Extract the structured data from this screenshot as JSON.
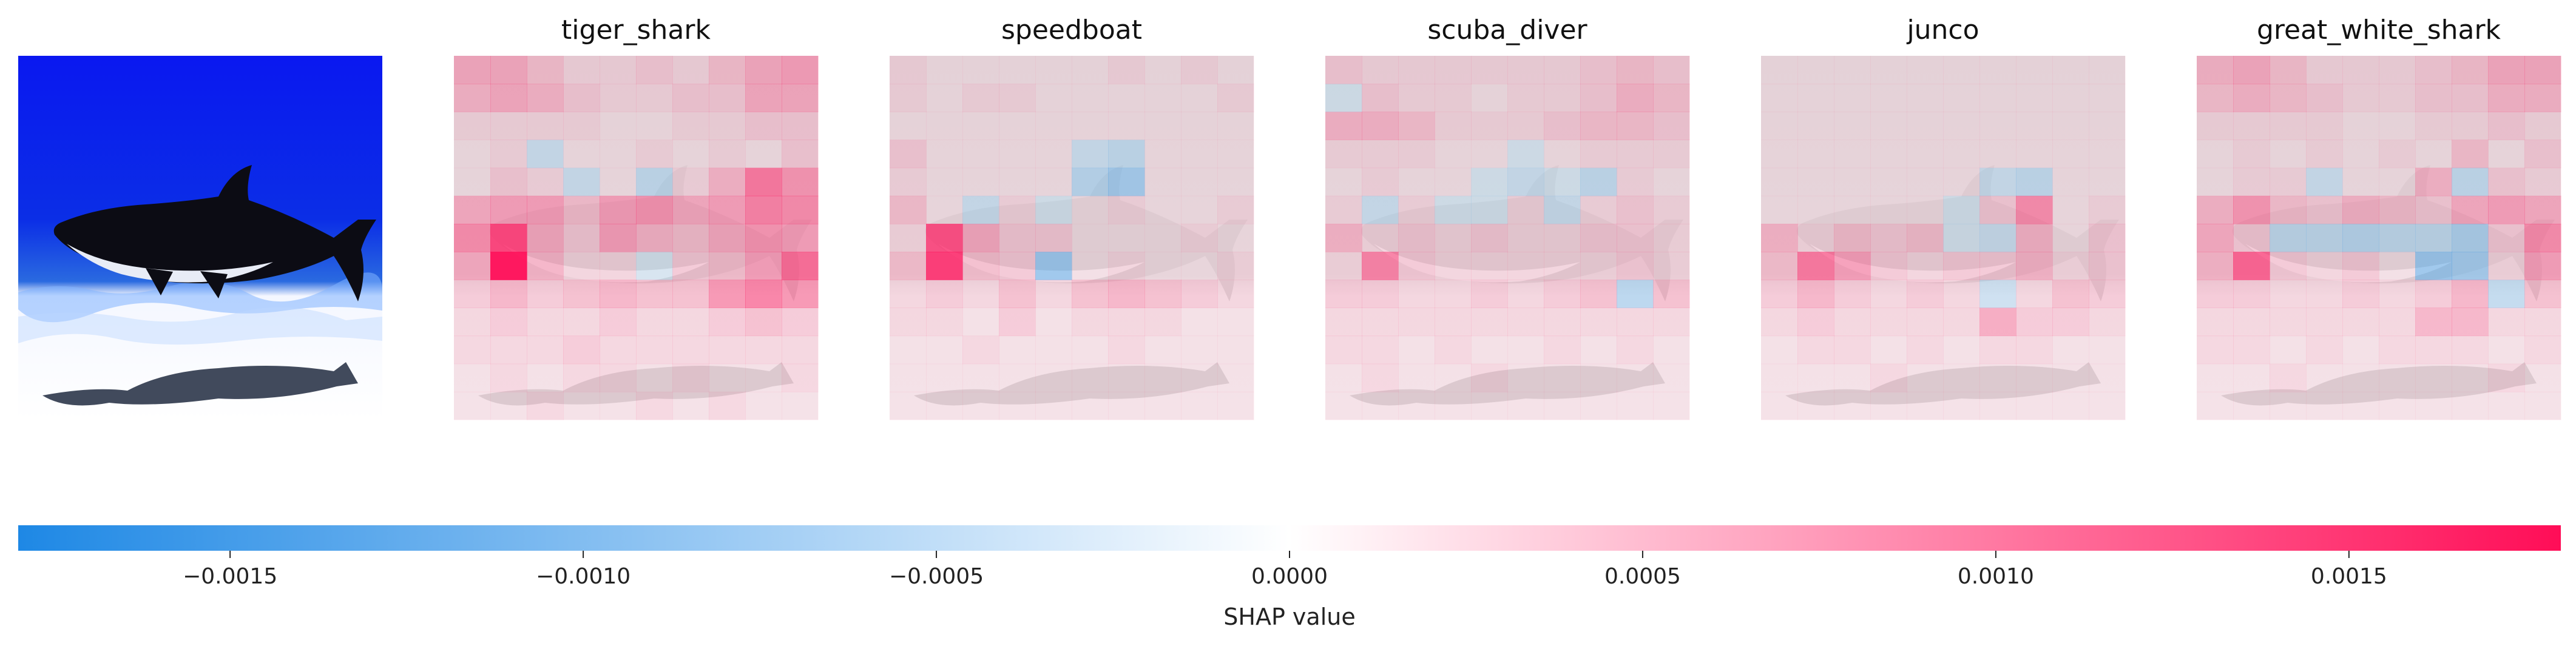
{
  "chart_data": {
    "type": "heatmap",
    "panels": [
      {
        "title": "",
        "kind": "input-image"
      },
      {
        "title": "tiger_shark",
        "grid": [
          [
            0.25,
            0.25,
            0.15,
            0.05,
            0.05,
            0.1,
            0.05,
            0.15,
            0.25,
            0.3
          ],
          [
            0.2,
            0.25,
            0.2,
            0.1,
            0.05,
            0.05,
            0.1,
            0.1,
            0.25,
            0.25
          ],
          [
            0.05,
            0.05,
            0.05,
            0.05,
            0.0,
            0.0,
            0.05,
            0.05,
            0.1,
            0.1
          ],
          [
            0.0,
            0.05,
            -0.1,
            0.0,
            0.0,
            0.05,
            0.0,
            0.05,
            0.0,
            0.1
          ],
          [
            0.0,
            0.1,
            0.05,
            -0.1,
            0.0,
            -0.15,
            0.05,
            0.2,
            0.5,
            0.35
          ],
          [
            0.25,
            0.3,
            0.3,
            0.15,
            0.3,
            0.35,
            0.25,
            0.3,
            0.45,
            0.4
          ],
          [
            0.4,
            0.75,
            0.25,
            0.1,
            0.3,
            0.2,
            0.15,
            0.25,
            0.35,
            0.3
          ],
          [
            0.25,
            1.0,
            0.2,
            0.05,
            0.05,
            -0.05,
            0.1,
            0.15,
            0.3,
            0.55
          ],
          [
            0.1,
            0.2,
            0.1,
            0.15,
            0.2,
            0.15,
            0.15,
            0.35,
            0.45,
            0.35
          ],
          [
            0.05,
            0.1,
            0.05,
            0.05,
            0.1,
            0.05,
            0.05,
            0.1,
            0.15,
            0.1
          ],
          [
            0.05,
            0.05,
            0.05,
            0.1,
            0.05,
            0.05,
            0.05,
            0.05,
            0.05,
            0.05
          ],
          [
            0.0,
            0.05,
            0.0,
            0.05,
            0.05,
            0.0,
            0.05,
            0.0,
            0.0,
            0.05
          ],
          [
            0.0,
            0.0,
            0.05,
            0.0,
            0.0,
            0.05,
            0.0,
            0.05,
            0.0,
            0.0
          ]
        ]
      },
      {
        "title": "speedboat",
        "grid": [
          [
            0.05,
            0.0,
            0.0,
            0.0,
            0.0,
            0.0,
            0.05,
            0.0,
            0.05,
            0.0
          ],
          [
            0.05,
            0.0,
            0.05,
            0.05,
            0.0,
            0.0,
            0.0,
            0.0,
            0.0,
            0.05
          ],
          [
            0.0,
            0.0,
            0.0,
            0.0,
            0.0,
            0.0,
            0.0,
            0.0,
            0.0,
            0.0
          ],
          [
            0.1,
            0.0,
            0.0,
            0.0,
            0.0,
            -0.1,
            -0.15,
            0.0,
            0.0,
            0.0
          ],
          [
            0.05,
            0.0,
            0.0,
            0.0,
            0.0,
            -0.2,
            -0.3,
            0.0,
            0.0,
            0.0
          ],
          [
            0.15,
            0.0,
            -0.1,
            0.05,
            -0.05,
            0.0,
            0.05,
            0.0,
            0.0,
            0.05
          ],
          [
            0.05,
            0.7,
            0.25,
            0.1,
            0.1,
            0.0,
            0.0,
            0.0,
            0.05,
            0.0
          ],
          [
            0.15,
            0.8,
            0.15,
            0.1,
            -0.35,
            0.0,
            0.05,
            0.0,
            0.0,
            0.05
          ],
          [
            0.05,
            0.1,
            0.05,
            0.15,
            0.05,
            0.15,
            0.2,
            0.15,
            0.1,
            0.05
          ],
          [
            0.05,
            0.05,
            0.0,
            0.1,
            0.0,
            0.05,
            0.05,
            0.05,
            0.0,
            0.0
          ],
          [
            0.0,
            0.0,
            0.05,
            0.0,
            0.0,
            0.0,
            0.05,
            0.0,
            0.0,
            0.0
          ],
          [
            0.0,
            0.0,
            0.0,
            0.0,
            0.0,
            0.0,
            0.0,
            0.0,
            0.0,
            0.0
          ],
          [
            0.0,
            0.0,
            0.0,
            0.0,
            0.0,
            0.0,
            0.0,
            0.0,
            0.0,
            0.0
          ]
        ]
      },
      {
        "title": "scuba_diver",
        "grid": [
          [
            0.1,
            0.05,
            0.05,
            0.05,
            0.05,
            0.05,
            0.05,
            0.1,
            0.15,
            0.1
          ],
          [
            -0.05,
            0.1,
            0.05,
            0.05,
            0.0,
            0.05,
            0.05,
            0.1,
            0.2,
            0.15
          ],
          [
            0.2,
            0.2,
            0.15,
            0.05,
            0.05,
            0.05,
            0.1,
            0.15,
            0.15,
            0.1
          ],
          [
            0.05,
            0.05,
            0.05,
            0.0,
            0.0,
            -0.05,
            0.0,
            0.05,
            0.05,
            0.05
          ],
          [
            0.0,
            0.05,
            0.0,
            0.0,
            -0.05,
            -0.1,
            -0.05,
            -0.15,
            0.05,
            0.0
          ],
          [
            0.05,
            -0.1,
            0.05,
            -0.05,
            -0.05,
            0.05,
            -0.1,
            0.05,
            0.1,
            0.05
          ],
          [
            0.2,
            0.05,
            0.1,
            0.05,
            0.1,
            0.05,
            0.05,
            0.1,
            0.1,
            0.05
          ],
          [
            0.05,
            0.45,
            0.1,
            0.05,
            0.05,
            0.05,
            0.05,
            0.05,
            0.1,
            0.05
          ],
          [
            0.1,
            0.1,
            0.05,
            0.05,
            0.1,
            0.05,
            0.1,
            0.15,
            -0.2,
            0.15
          ],
          [
            0.05,
            0.05,
            0.05,
            0.05,
            0.05,
            0.05,
            0.05,
            0.05,
            0.05,
            0.05
          ],
          [
            0.05,
            0.05,
            0.0,
            0.05,
            0.0,
            0.0,
            0.05,
            0.0,
            0.05,
            0.0
          ],
          [
            0.0,
            0.05,
            0.0,
            0.0,
            0.05,
            0.0,
            0.0,
            0.0,
            0.0,
            0.0
          ],
          [
            0.0,
            0.0,
            0.0,
            0.0,
            0.0,
            0.0,
            0.0,
            0.0,
            0.0,
            0.0
          ]
        ]
      },
      {
        "title": "junco",
        "grid": [
          [
            0.0,
            0.0,
            0.0,
            0.0,
            0.0,
            0.0,
            0.0,
            0.0,
            0.0,
            0.0
          ],
          [
            0.0,
            0.0,
            0.0,
            0.0,
            0.0,
            0.0,
            0.0,
            0.0,
            0.0,
            0.0
          ],
          [
            0.0,
            0.0,
            0.0,
            0.0,
            0.0,
            0.0,
            0.0,
            0.0,
            0.0,
            0.0
          ],
          [
            0.0,
            0.0,
            0.0,
            0.0,
            0.0,
            0.0,
            0.0,
            0.0,
            0.0,
            0.0
          ],
          [
            0.0,
            0.0,
            0.0,
            0.0,
            0.0,
            0.0,
            -0.1,
            -0.15,
            0.0,
            0.0
          ],
          [
            0.0,
            0.0,
            0.0,
            0.0,
            0.0,
            -0.05,
            0.1,
            0.4,
            0.0,
            0.05
          ],
          [
            0.2,
            0.05,
            0.15,
            0.1,
            0.15,
            -0.05,
            -0.1,
            0.2,
            0.0,
            0.1
          ],
          [
            0.15,
            0.5,
            0.3,
            0.1,
            0.05,
            0.1,
            0.1,
            0.2,
            0.05,
            0.1
          ],
          [
            0.1,
            0.2,
            0.1,
            0.05,
            0.1,
            0.05,
            -0.1,
            0.05,
            0.15,
            0.1
          ],
          [
            0.05,
            0.1,
            0.05,
            0.05,
            0.05,
            0.05,
            0.25,
            0.1,
            0.1,
            0.05
          ],
          [
            0.0,
            0.05,
            0.05,
            0.0,
            0.05,
            0.0,
            0.05,
            0.05,
            0.0,
            0.0
          ],
          [
            0.0,
            0.0,
            0.0,
            0.05,
            0.0,
            0.0,
            0.0,
            0.0,
            0.0,
            0.0
          ],
          [
            0.0,
            0.0,
            0.0,
            0.0,
            0.0,
            0.0,
            0.0,
            0.0,
            0.0,
            0.0
          ]
        ]
      },
      {
        "title": "great_white_shark",
        "grid": [
          [
            0.2,
            0.25,
            0.15,
            0.05,
            0.05,
            0.05,
            0.1,
            0.15,
            0.25,
            0.25
          ],
          [
            0.15,
            0.2,
            0.15,
            0.1,
            0.05,
            0.05,
            0.1,
            0.1,
            0.2,
            0.2
          ],
          [
            0.05,
            0.05,
            0.05,
            0.05,
            0.0,
            0.0,
            0.05,
            0.05,
            0.1,
            0.05
          ],
          [
            0.0,
            0.05,
            0.0,
            0.05,
            0.0,
            0.05,
            0.0,
            0.15,
            0.0,
            0.1
          ],
          [
            0.0,
            0.05,
            0.05,
            -0.1,
            0.0,
            0.0,
            0.2,
            -0.15,
            0.1,
            0.05
          ],
          [
            0.2,
            0.35,
            0.15,
            0.1,
            0.2,
            0.15,
            0.1,
            0.25,
            0.3,
            0.25
          ],
          [
            0.25,
            0.1,
            -0.15,
            -0.15,
            -0.2,
            -0.15,
            -0.15,
            -0.25,
            0.1,
            0.4
          ],
          [
            0.2,
            0.6,
            0.1,
            0.05,
            0.1,
            0.0,
            -0.35,
            -0.3,
            0.05,
            0.3
          ],
          [
            0.1,
            0.1,
            0.05,
            0.05,
            0.1,
            0.05,
            0.1,
            0.2,
            -0.15,
            0.15
          ],
          [
            0.05,
            0.05,
            0.05,
            0.05,
            0.05,
            0.05,
            0.2,
            0.2,
            0.05,
            0.05
          ],
          [
            0.05,
            0.05,
            0.0,
            0.05,
            0.0,
            0.05,
            0.05,
            0.05,
            0.0,
            0.05
          ],
          [
            0.0,
            0.0,
            0.05,
            0.0,
            0.0,
            0.0,
            0.0,
            0.0,
            0.05,
            0.0
          ],
          [
            0.0,
            0.0,
            0.0,
            0.0,
            0.0,
            0.0,
            0.0,
            0.0,
            0.0,
            0.0
          ]
        ]
      }
    ],
    "colorbar": {
      "xlabel": "SHAP value",
      "range": [
        -0.0018,
        0.0018
      ],
      "ticks": [
        -0.0015,
        -0.001,
        -0.0005,
        0.0,
        0.0005,
        0.001,
        0.0015
      ],
      "tick_labels": [
        "−0.0015",
        "−0.0010",
        "−0.0005",
        "0.0000",
        "0.0005",
        "0.0010",
        "0.0015"
      ],
      "colors": {
        "negative": "#1e88e5",
        "zero": "#ffffff",
        "positive": "#ff0d57"
      }
    },
    "grid": false,
    "legend": "none"
  }
}
